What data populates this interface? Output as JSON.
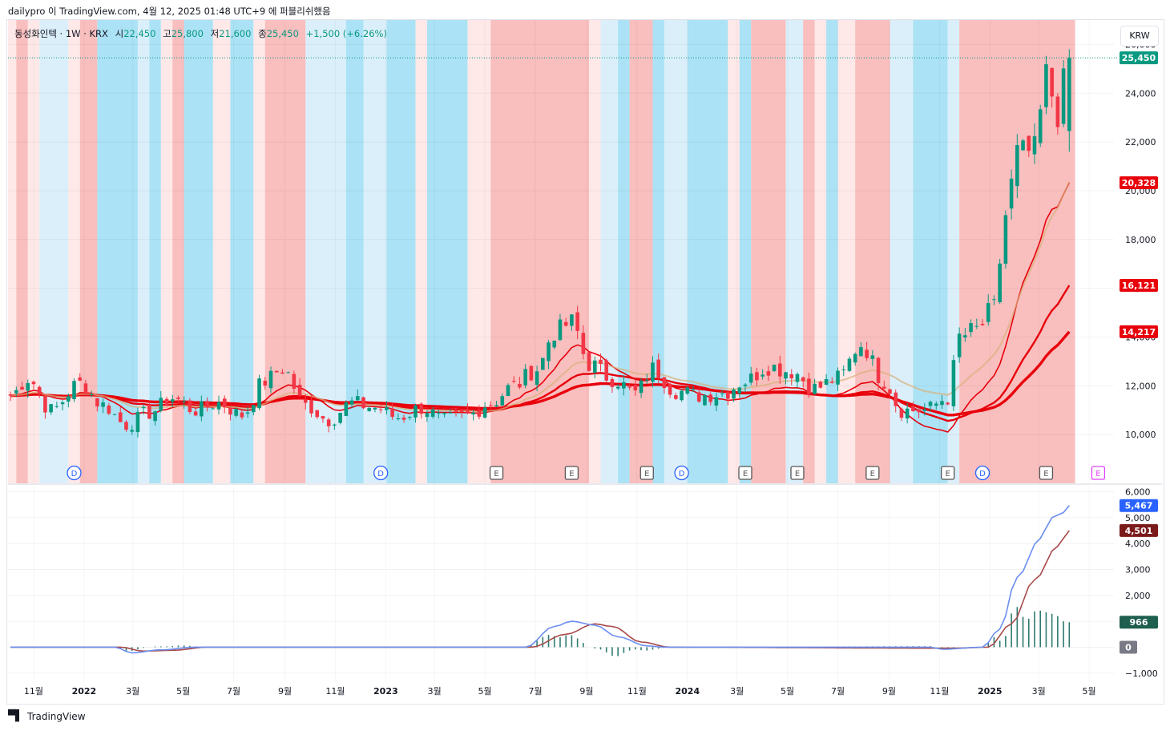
{
  "header": {
    "publish_line": "dailypro 이 TradingView.com, 4월 12, 2025 01:48 UTC+9 에 퍼블리쉬했음"
  },
  "legend": {
    "symbol": "동성화인텍 · 1W · KRX",
    "open_label": "시",
    "open": "22,450",
    "high_label": "고",
    "high": "25,800",
    "low_label": "저",
    "low": "21,600",
    "close_label": "종",
    "close": "25,450",
    "change": "+1,500 (+6.26%)"
  },
  "currency": "KRW",
  "footer": {
    "brand": "TradingView",
    "logo": "tradingview-logo-icon"
  },
  "colors": {
    "up": "#089981",
    "down": "#f23645",
    "band_red": "#f7a8a8",
    "band_red_light": "#fde0e0",
    "band_blue": "#8fd8f2",
    "band_blue_light": "#cfeaf8",
    "ma_fast": "#f23645",
    "ma_mid": "#e8000b",
    "ma_slow": "#ff0000",
    "macd": "#6b8ff0",
    "signal": "#a84a4a",
    "hist": "#2f7a6f",
    "dividend": "#2962ff",
    "earnings": "#555555",
    "earnings_future": "#e040fb"
  },
  "chart_data": {
    "type": "candlestick",
    "title": "",
    "interval": "1W",
    "y_axis": {
      "ticks": [
        10000,
        12000,
        14000,
        16000,
        18000,
        20000,
        22000,
        24000,
        26000
      ],
      "tick_labels": [
        "10,000",
        "12,000",
        "14,000",
        "16,000",
        "18,000",
        "20,000",
        "22,000",
        "24,000",
        "26,000"
      ],
      "range": [
        8000,
        27000
      ]
    },
    "x_axis": {
      "labels": [
        {
          "date": "2021-11-01",
          "text": "11월"
        },
        {
          "date": "2022-01-01",
          "text": "2022"
        },
        {
          "date": "2022-03-01",
          "text": "3월"
        },
        {
          "date": "2022-05-01",
          "text": "5월"
        },
        {
          "date": "2022-07-01",
          "text": "7월"
        },
        {
          "date": "2022-09-01",
          "text": "9월"
        },
        {
          "date": "2022-11-01",
          "text": "11월"
        },
        {
          "date": "2023-01-01",
          "text": "2023"
        },
        {
          "date": "2023-03-01",
          "text": "3월"
        },
        {
          "date": "2023-05-01",
          "text": "5월"
        },
        {
          "date": "2023-07-01",
          "text": "7월"
        },
        {
          "date": "2023-09-01",
          "text": "9월"
        },
        {
          "date": "2023-11-01",
          "text": "11월"
        },
        {
          "date": "2024-01-01",
          "text": "2024"
        },
        {
          "date": "2024-03-01",
          "text": "3월"
        },
        {
          "date": "2024-05-01",
          "text": "5월"
        },
        {
          "date": "2024-07-01",
          "text": "7월"
        },
        {
          "date": "2024-09-01",
          "text": "9월"
        },
        {
          "date": "2024-11-01",
          "text": "11월"
        },
        {
          "date": "2025-01-01",
          "text": "2025"
        },
        {
          "date": "2025-03-01",
          "text": "3월"
        },
        {
          "date": "2025-05-01",
          "text": "5월"
        }
      ],
      "range": [
        "2021-10-01",
        "2025-05-31"
      ]
    },
    "last_price": {
      "value": 25450,
      "label": "25,450"
    },
    "price_series_anchors": [
      [
        "2021-10-04",
        11600
      ],
      [
        "2021-10-25",
        12300
      ],
      [
        "2021-11-22",
        11000
      ],
      [
        "2021-12-27",
        12100
      ],
      [
        "2022-01-24",
        11200
      ],
      [
        "2022-02-21",
        10400
      ],
      [
        "2022-03-21",
        10900
      ],
      [
        "2022-04-18",
        11500
      ],
      [
        "2022-05-16",
        11000
      ],
      [
        "2022-06-13",
        11300
      ],
      [
        "2022-07-11",
        10800
      ],
      [
        "2022-08-08",
        12200
      ],
      [
        "2022-08-29",
        12700
      ],
      [
        "2022-09-26",
        11200
      ],
      [
        "2022-10-24",
        10600
      ],
      [
        "2022-11-21",
        11300
      ],
      [
        "2022-12-19",
        11100
      ],
      [
        "2023-01-16",
        10700
      ],
      [
        "2023-02-13",
        11100
      ],
      [
        "2023-03-13",
        10600
      ],
      [
        "2023-04-10",
        10800
      ],
      [
        "2023-05-08",
        11300
      ],
      [
        "2023-06-05",
        12000
      ],
      [
        "2023-07-03",
        12700
      ],
      [
        "2023-07-24",
        14200
      ],
      [
        "2023-08-14",
        14600
      ],
      [
        "2023-09-04",
        12900
      ],
      [
        "2023-10-02",
        12300
      ],
      [
        "2023-10-30",
        11700
      ],
      [
        "2023-11-20",
        12700
      ],
      [
        "2023-12-18",
        11800
      ],
      [
        "2024-01-15",
        11600
      ],
      [
        "2024-02-12",
        11700
      ],
      [
        "2024-03-11",
        12200
      ],
      [
        "2024-04-08",
        12800
      ],
      [
        "2024-05-06",
        12600
      ],
      [
        "2024-06-03",
        11900
      ],
      [
        "2024-07-01",
        12300
      ],
      [
        "2024-07-29",
        13700
      ],
      [
        "2024-08-26",
        12200
      ],
      [
        "2024-09-16",
        11000
      ],
      [
        "2024-10-14",
        11000
      ],
      [
        "2024-11-11",
        11500
      ],
      [
        "2024-11-25",
        14000
      ],
      [
        "2024-12-16",
        14300
      ],
      [
        "2025-01-06",
        15200
      ],
      [
        "2025-01-20",
        19000
      ],
      [
        "2025-02-03",
        21500
      ],
      [
        "2025-02-24",
        21600
      ],
      [
        "2025-03-10",
        24700
      ],
      [
        "2025-03-24",
        23200
      ],
      [
        "2025-04-07",
        25450
      ]
    ],
    "moving_averages": [
      {
        "label": "20,328",
        "value": 20328,
        "color": "#e8000b",
        "width": 1.6
      },
      {
        "label": "16,121",
        "value": 16121,
        "color": "#e8000b",
        "width": 2.4
      },
      {
        "label": "14,217",
        "value": 14217,
        "color": "#e8000b",
        "width": 3.4
      }
    ],
    "band_segments": [
      [
        "2021-10-01",
        "2021-10-11",
        "rl"
      ],
      [
        "2021-10-11",
        "2021-10-25",
        "r"
      ],
      [
        "2021-10-25",
        "2021-11-08",
        "rl"
      ],
      [
        "2021-11-08",
        "2021-12-13",
        "bl"
      ],
      [
        "2021-12-13",
        "2021-12-27",
        "rl"
      ],
      [
        "2021-12-27",
        "2022-01-17",
        "r"
      ],
      [
        "2022-01-17",
        "2022-03-07",
        "b"
      ],
      [
        "2022-03-07",
        "2022-03-21",
        "bl"
      ],
      [
        "2022-03-21",
        "2022-04-04",
        "b"
      ],
      [
        "2022-04-04",
        "2022-04-18",
        "rl"
      ],
      [
        "2022-04-18",
        "2022-05-02",
        "r"
      ],
      [
        "2022-05-02",
        "2022-06-06",
        "b"
      ],
      [
        "2022-06-06",
        "2022-06-27",
        "rl"
      ],
      [
        "2022-06-27",
        "2022-07-25",
        "b"
      ],
      [
        "2022-07-25",
        "2022-08-08",
        "rl"
      ],
      [
        "2022-08-08",
        "2022-09-26",
        "r"
      ],
      [
        "2022-09-26",
        "2022-11-14",
        "bl"
      ],
      [
        "2022-11-14",
        "2022-12-05",
        "b"
      ],
      [
        "2022-12-05",
        "2023-01-02",
        "bl"
      ],
      [
        "2023-01-02",
        "2023-02-06",
        "b"
      ],
      [
        "2023-02-06",
        "2023-02-20",
        "rl"
      ],
      [
        "2023-02-20",
        "2023-04-10",
        "b"
      ],
      [
        "2023-04-10",
        "2023-05-08",
        "rl"
      ],
      [
        "2023-05-08",
        "2023-06-26",
        "r"
      ],
      [
        "2023-06-26",
        "2023-09-04",
        "r"
      ],
      [
        "2023-09-04",
        "2023-09-18",
        "rl"
      ],
      [
        "2023-09-18",
        "2023-10-09",
        "bl"
      ],
      [
        "2023-10-09",
        "2023-10-23",
        "b"
      ],
      [
        "2023-10-23",
        "2023-11-20",
        "r"
      ],
      [
        "2023-11-20",
        "2023-12-04",
        "b"
      ],
      [
        "2023-12-04",
        "2024-01-01",
        "bl"
      ],
      [
        "2024-01-01",
        "2024-02-19",
        "b"
      ],
      [
        "2024-02-19",
        "2024-03-04",
        "rl"
      ],
      [
        "2024-03-04",
        "2024-03-18",
        "b"
      ],
      [
        "2024-03-18",
        "2024-04-29",
        "r"
      ],
      [
        "2024-04-29",
        "2024-05-20",
        "bl"
      ],
      [
        "2024-05-20",
        "2024-06-03",
        "r"
      ],
      [
        "2024-06-03",
        "2024-06-17",
        "rl"
      ],
      [
        "2024-06-17",
        "2024-07-01",
        "b"
      ],
      [
        "2024-07-01",
        "2024-07-22",
        "rl"
      ],
      [
        "2024-07-22",
        "2024-09-02",
        "r"
      ],
      [
        "2024-09-02",
        "2024-09-30",
        "bl"
      ],
      [
        "2024-09-30",
        "2024-11-11",
        "b"
      ],
      [
        "2024-11-11",
        "2024-11-25",
        "bl"
      ],
      [
        "2024-11-25",
        "2025-04-14",
        "r"
      ]
    ],
    "event_markers": [
      {
        "date": "2021-12-20",
        "label": "D",
        "kind": "dividend"
      },
      {
        "date": "2022-12-26",
        "label": "D",
        "kind": "dividend"
      },
      {
        "date": "2023-05-15",
        "label": "E",
        "kind": "earnings"
      },
      {
        "date": "2023-08-14",
        "label": "E",
        "kind": "earnings"
      },
      {
        "date": "2023-11-13",
        "label": "E",
        "kind": "earnings"
      },
      {
        "date": "2023-12-25",
        "label": "D",
        "kind": "dividend"
      },
      {
        "date": "2024-03-11",
        "label": "E",
        "kind": "earnings"
      },
      {
        "date": "2024-05-13",
        "label": "E",
        "kind": "earnings"
      },
      {
        "date": "2024-08-12",
        "label": "E",
        "kind": "earnings"
      },
      {
        "date": "2024-11-11",
        "label": "E",
        "kind": "earnings"
      },
      {
        "date": "2024-12-23",
        "label": "D",
        "kind": "dividend"
      },
      {
        "date": "2025-03-10",
        "label": "E",
        "kind": "earnings"
      },
      {
        "date": "2025-05-12",
        "label": "E",
        "kind": "earnings_future"
      }
    ],
    "macd_panel": {
      "y_ticks": [
        -1000,
        0,
        1000,
        2000,
        3000,
        4000,
        5000,
        6000
      ],
      "y_tick_labels": [
        "−1,000",
        "",
        "1,000",
        "2,000",
        "3,000",
        "4,000",
        "5,000",
        "6,000"
      ],
      "range": [
        -1100,
        6200
      ],
      "macd_label": "5,467",
      "signal_label": "4,501",
      "hist_label": "966",
      "zero_label": "0",
      "macd_last": 5467,
      "signal_last": 4501,
      "hist_last": 966,
      "macd_anchors": [
        [
          "2021-10-01",
          0
        ],
        [
          "2022-02-07",
          0
        ],
        [
          "2022-02-28",
          -220
        ],
        [
          "2022-04-04",
          -100
        ],
        [
          "2022-05-16",
          0
        ],
        [
          "2023-06-19",
          0
        ],
        [
          "2023-07-24",
          800
        ],
        [
          "2023-08-14",
          1000
        ],
        [
          "2023-09-11",
          850
        ],
        [
          "2023-10-09",
          400
        ],
        [
          "2023-11-13",
          50
        ],
        [
          "2023-12-04",
          0
        ],
        [
          "2024-10-21",
          0
        ],
        [
          "2024-11-04",
          -80
        ],
        [
          "2024-12-23",
          0
        ],
        [
          "2025-01-13",
          700
        ],
        [
          "2025-02-03",
          2700
        ],
        [
          "2025-03-03",
          4200
        ],
        [
          "2025-03-17",
          5000
        ],
        [
          "2025-03-31",
          5200
        ],
        [
          "2025-04-07",
          5467
        ]
      ],
      "signal_anchors": [
        [
          "2021-10-01",
          0
        ],
        [
          "2022-02-14",
          0
        ],
        [
          "2022-03-14",
          -150
        ],
        [
          "2022-04-18",
          -120
        ],
        [
          "2022-05-30",
          0
        ],
        [
          "2023-06-26",
          0
        ],
        [
          "2023-08-07",
          500
        ],
        [
          "2023-09-11",
          900
        ],
        [
          "2023-10-02",
          800
        ],
        [
          "2023-11-06",
          200
        ],
        [
          "2023-12-11",
          0
        ],
        [
          "2024-11-18",
          -40
        ],
        [
          "2024-12-30",
          0
        ],
        [
          "2025-01-27",
          900
        ],
        [
          "2025-02-24",
          2600
        ],
        [
          "2025-03-24",
          3900
        ],
        [
          "2025-04-07",
          4501
        ]
      ]
    }
  }
}
